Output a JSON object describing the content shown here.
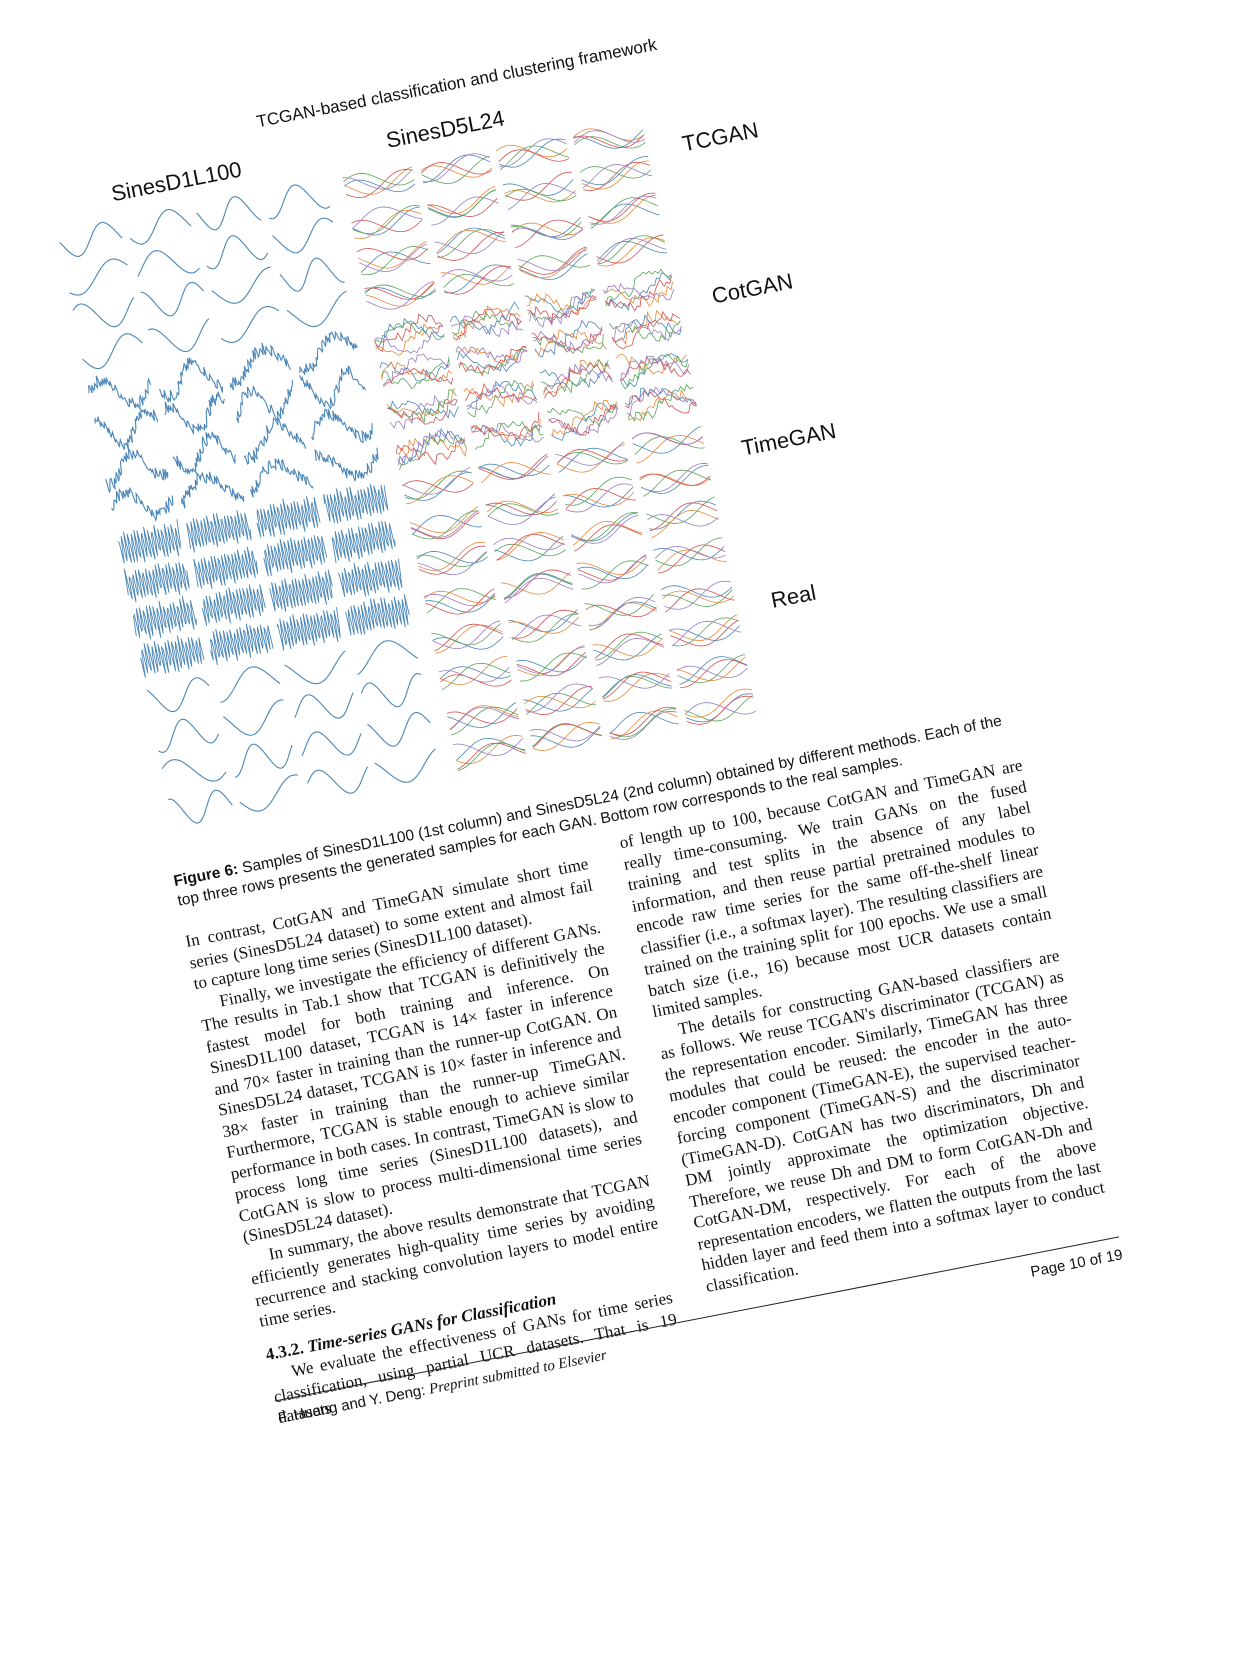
{
  "header": {
    "running_title": "TCGAN-based classification and clustering framework"
  },
  "figure": {
    "column_labels": [
      "SinesD1L100",
      "SinesD5L24"
    ],
    "row_labels": [
      "TCGAN",
      "CotGAN",
      "TimeGAN",
      "Real"
    ],
    "colors": {
      "single": "#4a86b8",
      "multi": [
        "#4a86b8",
        "#e8893a",
        "#5aa55a",
        "#d65050",
        "#9a7cc4"
      ]
    }
  },
  "caption": {
    "label": "Figure 6:",
    "text": "Samples of SinesD1L100 (1st column) and SinesD5L24 (2nd column) obtained by different methods. Each of the top three rows presents the generated samples for each GAN. Bottom row corresponds to the real samples."
  },
  "left_column": {
    "p1": "In contrast, CotGAN and TimeGAN simulate short time series (SinesD5L24 dataset) to some extent and almost fail to capture long time series (SinesD1L100 dataset).",
    "p2": "Finally, we investigate the efficiency of different GANs. The results in Tab.1 show that TCGAN is definitively the fastest model for both training and inference. On SinesD1L100 dataset, TCGAN is 14× faster in inference and 70× faster in training than the runner-up CotGAN. On SinesD5L24 dataset, TCGAN is 10× faster in inference and 38× faster in training than the runner-up TimeGAN. Furthermore, TCGAN is stable enough to achieve similar performance in both cases. In contrast, TimeGAN is slow to process long time series (SinesD1L100 datasets), and CotGAN is slow to process multi-dimensional time series (SinesD5L24 dataset).",
    "p3": "In summary, the above results demonstrate that TCGAN efficiently generates high-quality time series by avoiding recurrence and stacking convolution layers to model entire time series.",
    "section_number": "4.3.2.",
    "section_title": "Time-series GANs for Classification",
    "p4": "We evaluate the effectiveness of GANs for time series classification, using partial UCR datasets. That is 19 datasets"
  },
  "right_column": {
    "p1": "of length up to 100, because CotGAN and TimeGAN are really time-consuming. We train GANs on the fused training and test splits in the absence of any label information, and then reuse partial pretrained modules to encode raw time series for the same off-the-shelf linear classifier (i.e., a softmax layer). The resulting classifiers are trained on the training split for 100 epochs. We use a small batch size (i.e., 16) because most UCR datasets contain limited samples.",
    "p2": "The details for constructing GAN-based classifiers are as follows. We reuse TCGAN's discriminator (TCGAN) as the representation encoder. Similarly, TimeGAN has three modules that could be reused: the encoder in the auto-encoder component (TimeGAN-E), the supervised teacher-forcing component (TimeGAN-S) and the discriminator (TimeGAN-D). CotGAN has two discriminators, Dh and DM jointly approximate the optimization objective. Therefore, we reuse Dh and DM to form CotGAN-Dh and CotGAN-DM, respectively. For each of the above representation encoders, we flatten the outputs from the last hidden layer and feed them into a softmax layer to conduct classification."
  },
  "footer": {
    "authors": "F. Huang and Y. Deng:",
    "venue": "Preprint submitted to Elsevier",
    "page": "Page 10 of 19"
  }
}
